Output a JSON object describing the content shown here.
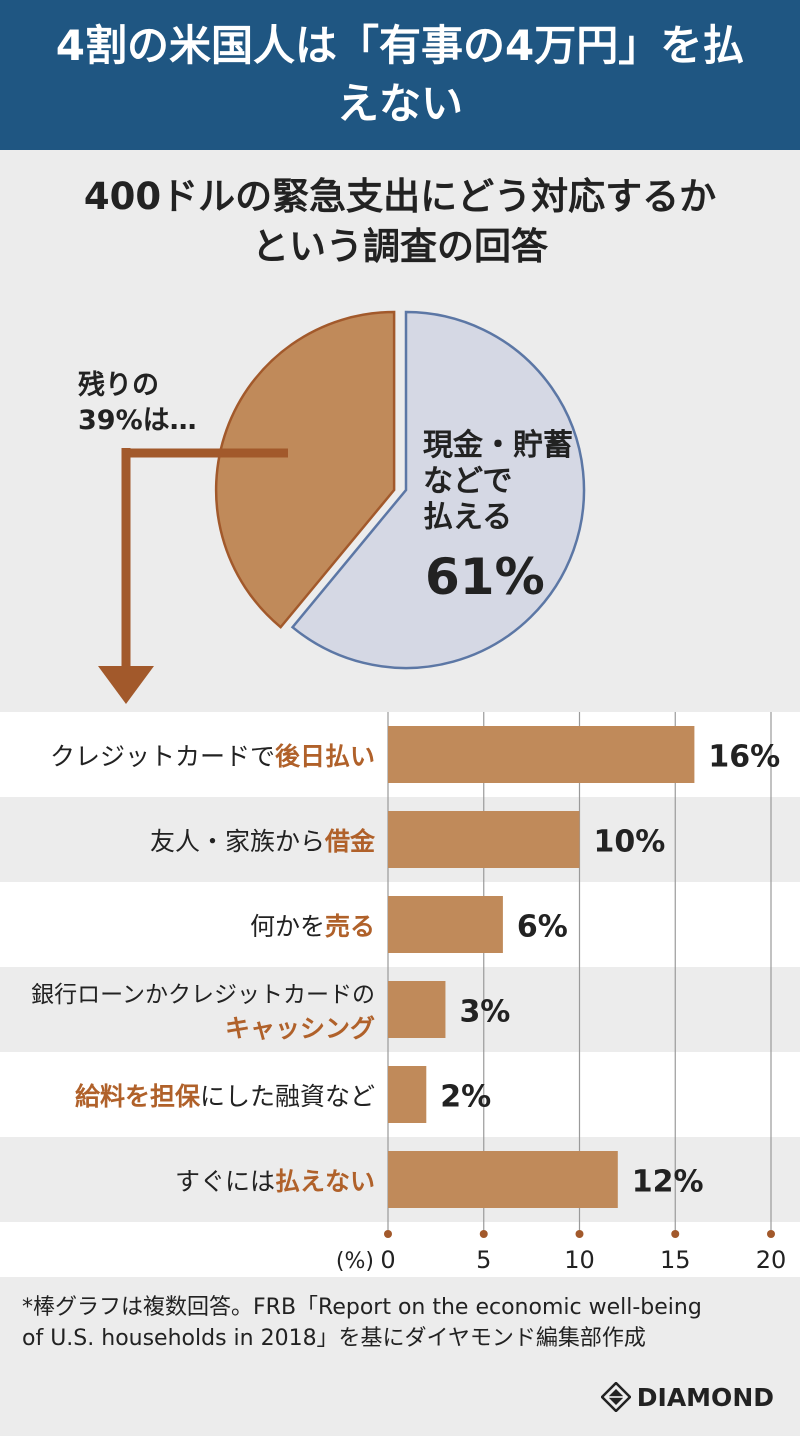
{
  "header": {
    "title": "4割の米国人は「有事の4万円」を払えない"
  },
  "subtitle": {
    "line1": "400ドルの緊急支出にどう対応するか",
    "line2": "という調査の回答"
  },
  "pie": {
    "rest_label_1": "残りの",
    "rest_label_2": "39%は…",
    "cash_label_1": "現金・貯蓄",
    "cash_label_2": "などで",
    "cash_label_3": "払える",
    "cash_pct": "61%"
  },
  "colors": {
    "header_bg": "#1f5682",
    "brown": "#c08a5a",
    "brown_dark": "#a2592b",
    "highlight": "#b0612a",
    "pie_blue": "#d5d8e4",
    "pie_blue_edge": "#5c77a5"
  },
  "chart_data": [
    {
      "type": "pie",
      "categories": [
        "現金・貯蓄などで払える",
        "残り"
      ],
      "values": [
        61,
        39
      ]
    },
    {
      "type": "bar",
      "orientation": "horizontal",
      "categories": [
        {
          "parts": [
            {
              "text": "クレジットカードで",
              "hl": false
            },
            {
              "text": "後日払い",
              "hl": true
            }
          ]
        },
        {
          "parts": [
            {
              "text": "友人・家族から",
              "hl": false
            },
            {
              "text": "借金",
              "hl": true
            }
          ]
        },
        {
          "parts": [
            {
              "text": "何かを",
              "hl": false
            },
            {
              "text": "売る",
              "hl": true
            }
          ]
        },
        {
          "line1": "銀行ローンかクレジットカードの",
          "line2": "キャッシング"
        },
        {
          "parts": [
            {
              "text": "給料を担保",
              "hl": true
            },
            {
              "text": "にした融資など",
              "hl": false
            }
          ]
        },
        {
          "parts": [
            {
              "text": "すぐには",
              "hl": false
            },
            {
              "text": "払えない",
              "hl": true
            }
          ]
        }
      ],
      "values": [
        16,
        10,
        6,
        3,
        2,
        12
      ],
      "value_labels": [
        "16%",
        "10%",
        "6%",
        "3%",
        "2%",
        "12%"
      ],
      "xlim": [
        0,
        20
      ],
      "ticks": [
        0,
        5,
        10,
        15,
        20
      ],
      "tick_labels": [
        "0",
        "5",
        "10",
        "15",
        "20"
      ],
      "unit_label": "(%)",
      "grid": true
    }
  ],
  "footnote": {
    "line1": "*棒グラフは複数回答。FRB「Report on the economic well-being",
    "line2": "of U.S. households in 2018」を基にダイヤモンド編集部作成"
  },
  "brand": {
    "name": "DIAMOND",
    "icon": "diamond-logo-icon"
  }
}
